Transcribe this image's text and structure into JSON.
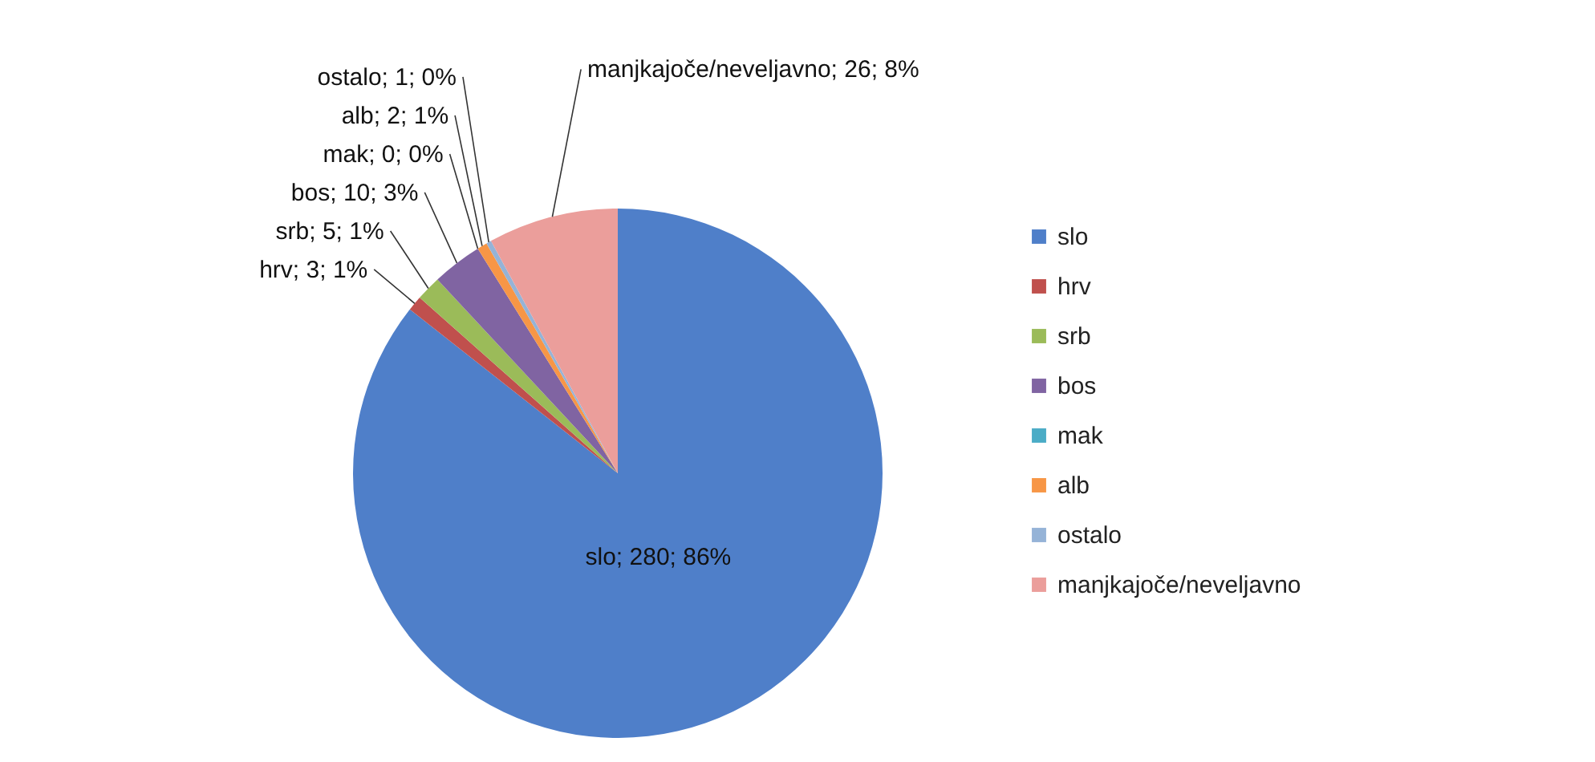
{
  "chart_data": {
    "type": "pie",
    "categories": [
      "slo",
      "hrv",
      "srb",
      "bos",
      "mak",
      "alb",
      "ostalo",
      "manjkajoče/neveljavno"
    ],
    "values": [
      280,
      3,
      5,
      10,
      0,
      2,
      1,
      26
    ],
    "colors": [
      "#4f7fc9",
      "#c0504d",
      "#9bbb59",
      "#8064a2",
      "#4bacc6",
      "#f79646",
      "#95b3d7",
      "#eb9e9b"
    ],
    "value_labels": [
      "slo; 280; 86%",
      "hrv; 3; 1%",
      "srb; 5; 1%",
      "bos; 10; 3%",
      "mak; 0; 0%",
      "alb; 2; 1%",
      "ostalo; 1; 0%",
      "manjkajoče/neveljavno; 26; 8%"
    ],
    "legend": "right"
  }
}
